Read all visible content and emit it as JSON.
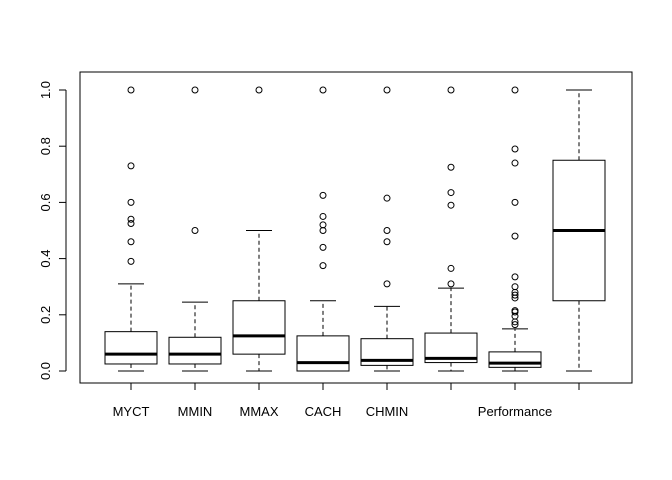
{
  "chart_data": {
    "type": "boxplot",
    "title": "",
    "xlabel": "",
    "ylabel": "",
    "ylim": [
      0,
      1
    ],
    "y_ticks": [
      0.0,
      0.2,
      0.4,
      0.6,
      0.8,
      1.0
    ],
    "y_tick_labels": [
      "0.0",
      "0.2",
      "0.4",
      "0.6",
      "0.8",
      "1.0"
    ],
    "grid": false,
    "legend": "none",
    "categories": [
      "MYCT",
      "MMIN",
      "MMAX",
      "CACH",
      "CHMIN",
      "",
      "Performance",
      ""
    ],
    "boxes": [
      {
        "name": "MYCT",
        "whisker_low": 0.0,
        "q1": 0.025,
        "median": 0.06,
        "q3": 0.14,
        "whisker_high": 0.31,
        "outliers": [
          0.39,
          0.46,
          0.525,
          0.54,
          0.6,
          0.73,
          1.0
        ]
      },
      {
        "name": "MMIN",
        "whisker_low": 0.0,
        "q1": 0.025,
        "median": 0.06,
        "q3": 0.12,
        "whisker_high": 0.245,
        "outliers": [
          0.5,
          1.0
        ]
      },
      {
        "name": "MMAX",
        "whisker_low": 0.0,
        "q1": 0.06,
        "median": 0.125,
        "q3": 0.25,
        "whisker_high": 0.5,
        "outliers": [
          1.0
        ]
      },
      {
        "name": "CACH",
        "whisker_low": 0.0,
        "q1": 0.0,
        "median": 0.03,
        "q3": 0.125,
        "whisker_high": 0.25,
        "outliers": [
          0.375,
          0.44,
          0.5,
          0.52,
          0.55,
          0.625,
          1.0
        ]
      },
      {
        "name": "CHMIN",
        "whisker_low": 0.0,
        "q1": 0.02,
        "median": 0.038,
        "q3": 0.115,
        "whisker_high": 0.23,
        "outliers": [
          0.31,
          0.46,
          0.5,
          0.615,
          1.0
        ]
      },
      {
        "name": "",
        "whisker_low": 0.0,
        "q1": 0.03,
        "median": 0.045,
        "q3": 0.135,
        "whisker_high": 0.295,
        "outliers": [
          0.31,
          0.365,
          0.59,
          0.635,
          0.725,
          1.0
        ]
      },
      {
        "name": "Performance",
        "whisker_low": 0.0,
        "q1": 0.013,
        "median": 0.028,
        "q3": 0.068,
        "whisker_high": 0.15,
        "outliers": [
          0.165,
          0.175,
          0.195,
          0.21,
          0.215,
          0.26,
          0.27,
          0.28,
          0.3,
          0.335,
          0.48,
          0.6,
          0.74,
          0.79,
          1.0
        ]
      },
      {
        "name": "",
        "whisker_low": 0.0,
        "q1": 0.25,
        "median": 0.5,
        "q3": 0.75,
        "whisker_high": 1.0,
        "outliers": []
      }
    ],
    "colors": {
      "box_fill": "#ffffff",
      "stroke": "#000000"
    }
  }
}
